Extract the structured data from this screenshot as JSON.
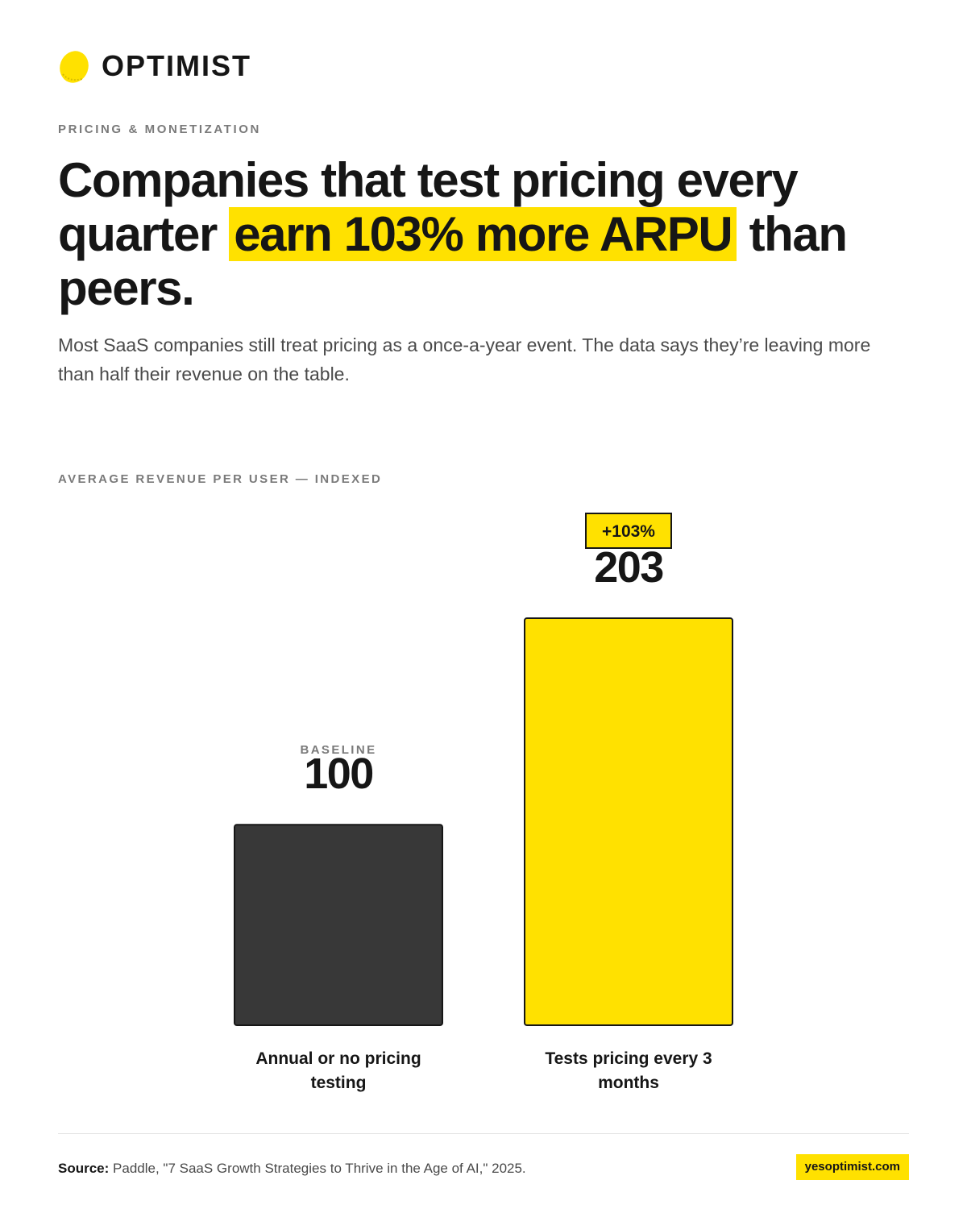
{
  "brand": {
    "name": "OPTIMIST",
    "logo_icon": "lemon-icon",
    "accent_color": "#ffe100"
  },
  "eyebrow": "PRICING & MONETIZATION",
  "headline": {
    "before": "Companies that test pricing every quarter",
    "highlight": "earn 103% more ARPU",
    "after": "than peers."
  },
  "subhead": "Most SaaS companies still treat pricing as a once-a-year event. The data says they’re leaving more than half their revenue on the table.",
  "chart_label": "AVERAGE REVENUE PER USER — INDEXED",
  "chart_data": {
    "type": "bar",
    "ylabel": "AVERAGE REVENUE PER USER — INDEXED",
    "ylim": [
      0,
      203
    ],
    "grid": false,
    "categories": [
      "Annual or no pricing testing",
      "Tests pricing every 3 months"
    ],
    "values": [
      100,
      203
    ],
    "value_labels": [
      "100",
      "203"
    ],
    "annotations": [
      "BASELINE",
      "+103%"
    ],
    "bar_colors": [
      "#383838",
      "#ffe100"
    ]
  },
  "footer": {
    "source_label": "Source:",
    "source_text": "Paddle, \"7 SaaS Growth Strategies to Thrive in the Age of AI,\" 2025.",
    "site": "yesoptimist.com"
  }
}
